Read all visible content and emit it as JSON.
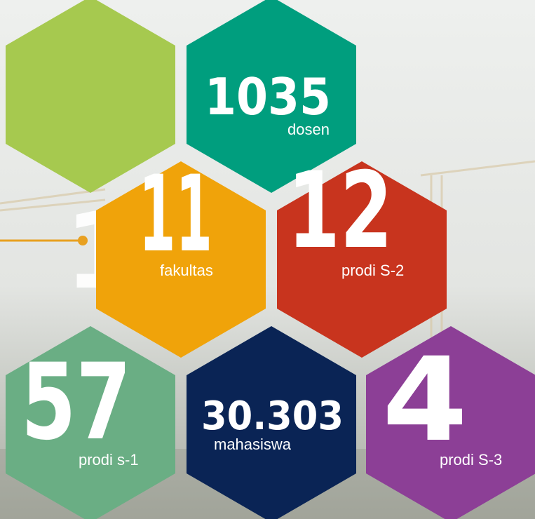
{
  "ghost_digit": "1",
  "stats": [
    {
      "number": "1035",
      "label": "dosen"
    },
    {
      "number": "11",
      "label": "fakultas"
    },
    {
      "number": "12",
      "label": "prodi S-2"
    },
    {
      "number": "57",
      "label": "prodi s-1"
    },
    {
      "number": "30.303",
      "label": "mahasiswa"
    },
    {
      "number": "4",
      "label": "prodi S-3"
    }
  ]
}
